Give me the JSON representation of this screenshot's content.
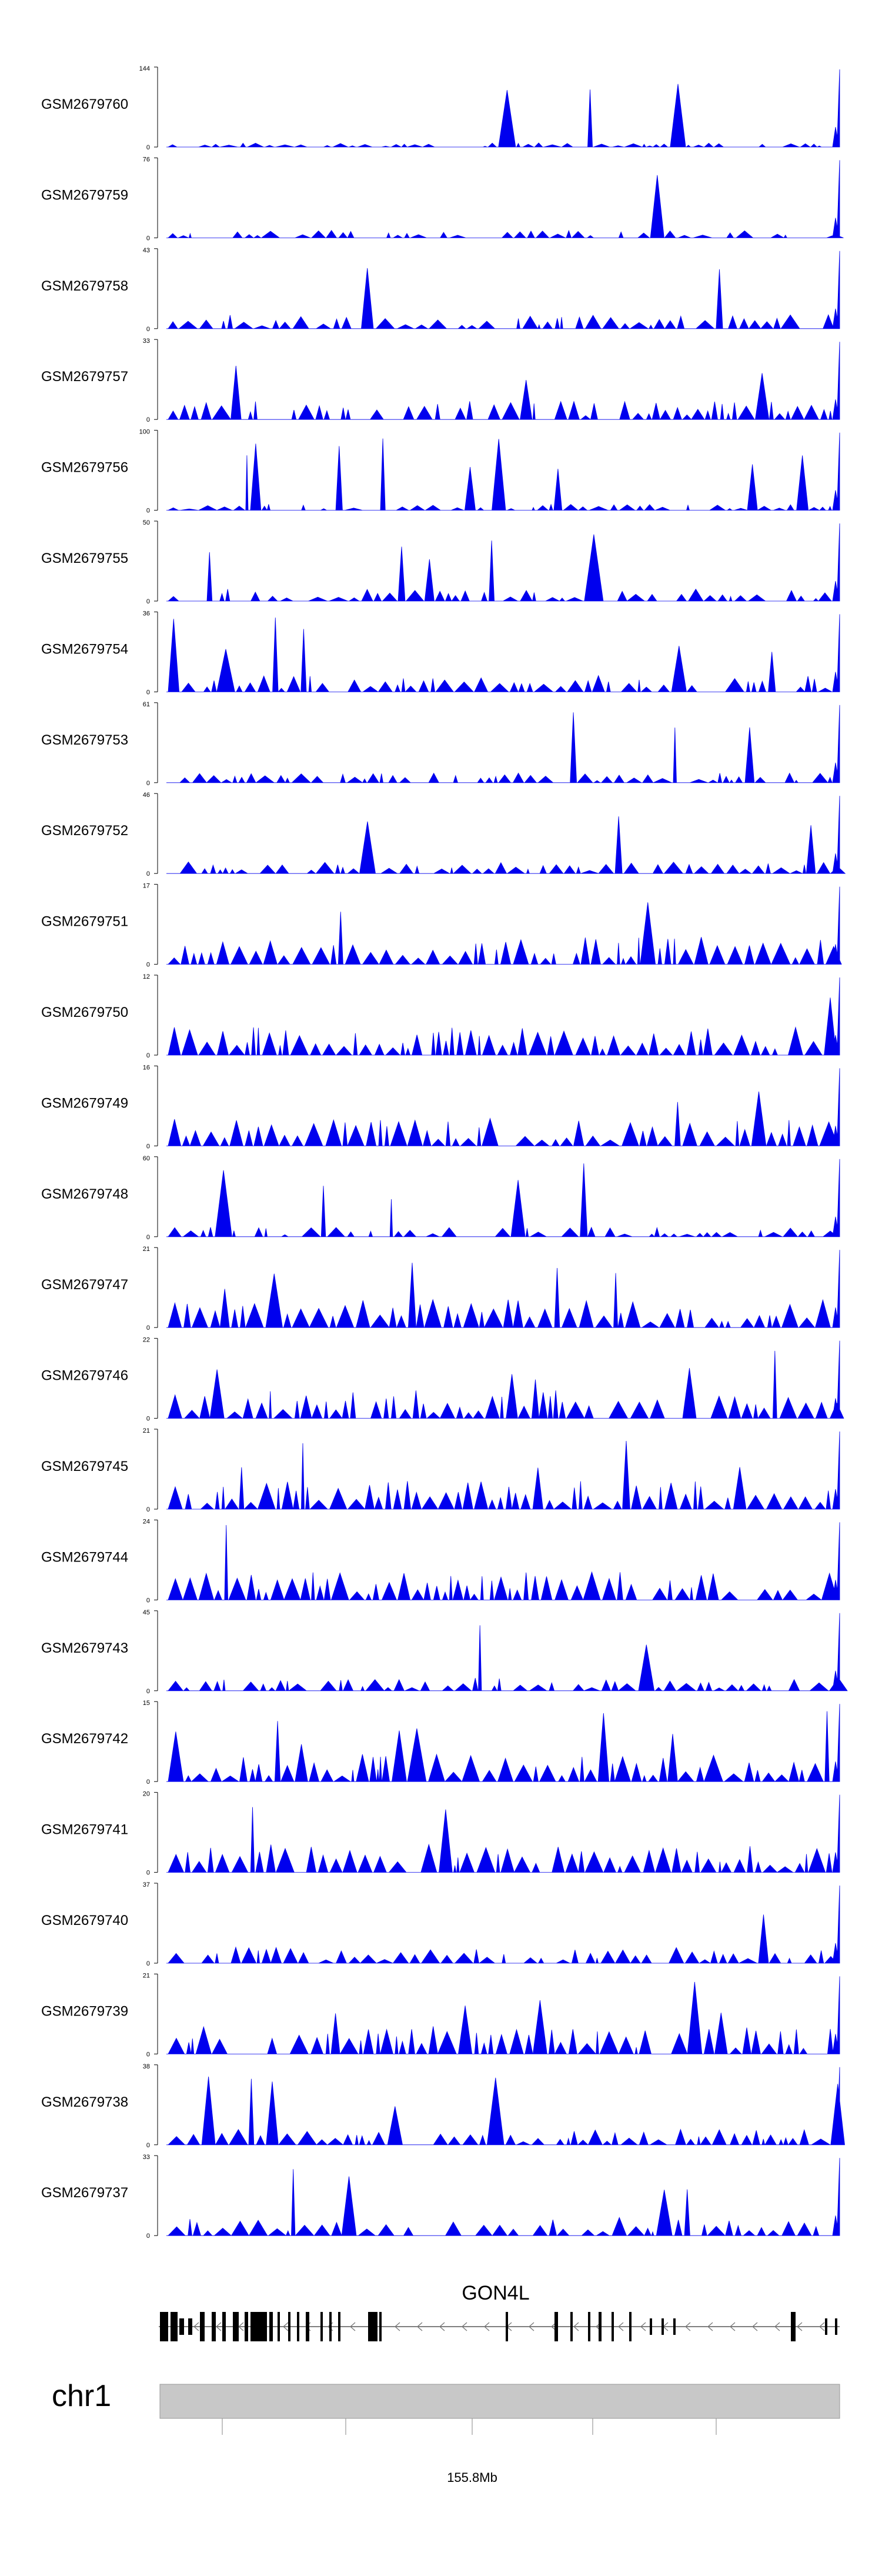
{
  "chart_data": {
    "type": "area",
    "tracks": [
      {
        "name": "GSM2679760",
        "ymax": "144",
        "ymin": "0"
      },
      {
        "name": "GSM2679759",
        "ymax": "76",
        "ymin": "0"
      },
      {
        "name": "GSM2679758",
        "ymax": "43",
        "ymin": "0"
      },
      {
        "name": "GSM2679757",
        "ymax": "33",
        "ymin": "0"
      },
      {
        "name": "GSM2679756",
        "ymax": "100",
        "ymin": "0"
      },
      {
        "name": "GSM2679755",
        "ymax": "50",
        "ymin": "0"
      },
      {
        "name": "GSM2679754",
        "ymax": "36",
        "ymin": "0"
      },
      {
        "name": "GSM2679753",
        "ymax": "61",
        "ymin": "0"
      },
      {
        "name": "GSM2679752",
        "ymax": "46",
        "ymin": "0"
      },
      {
        "name": "GSM2679751",
        "ymax": "17",
        "ymin": "0"
      },
      {
        "name": "GSM2679750",
        "ymax": "12",
        "ymin": "0"
      },
      {
        "name": "GSM2679749",
        "ymax": "16",
        "ymin": "0"
      },
      {
        "name": "GSM2679748",
        "ymax": "60",
        "ymin": "0"
      },
      {
        "name": "GSM2679747",
        "ymax": "21",
        "ymin": "0"
      },
      {
        "name": "GSM2679746",
        "ymax": "22",
        "ymin": "0"
      },
      {
        "name": "GSM2679745",
        "ymax": "21",
        "ymin": "0"
      },
      {
        "name": "GSM2679744",
        "ymax": "24",
        "ymin": "0"
      },
      {
        "name": "GSM2679743",
        "ymax": "45",
        "ymin": "0"
      },
      {
        "name": "GSM2679742",
        "ymax": "15",
        "ymin": "0"
      },
      {
        "name": "GSM2679741",
        "ymax": "20",
        "ymin": "0"
      },
      {
        "name": "GSM2679740",
        "ymax": "37",
        "ymin": "0"
      },
      {
        "name": "GSM2679739",
        "ymax": "21",
        "ymin": "0"
      },
      {
        "name": "GSM2679738",
        "ymax": "38",
        "ymin": "0"
      },
      {
        "name": "GSM2679737",
        "ymax": "33",
        "ymin": "0"
      }
    ],
    "gene": {
      "name": "GON4L",
      "strand": "-"
    },
    "chromosome": "chr1",
    "axis": {
      "tick_label": "155.8Mb"
    },
    "colors": {
      "signal": "#0000ee",
      "ideogram": "#c8c8c8",
      "exon": "#000000",
      "intron": "#555555"
    }
  }
}
